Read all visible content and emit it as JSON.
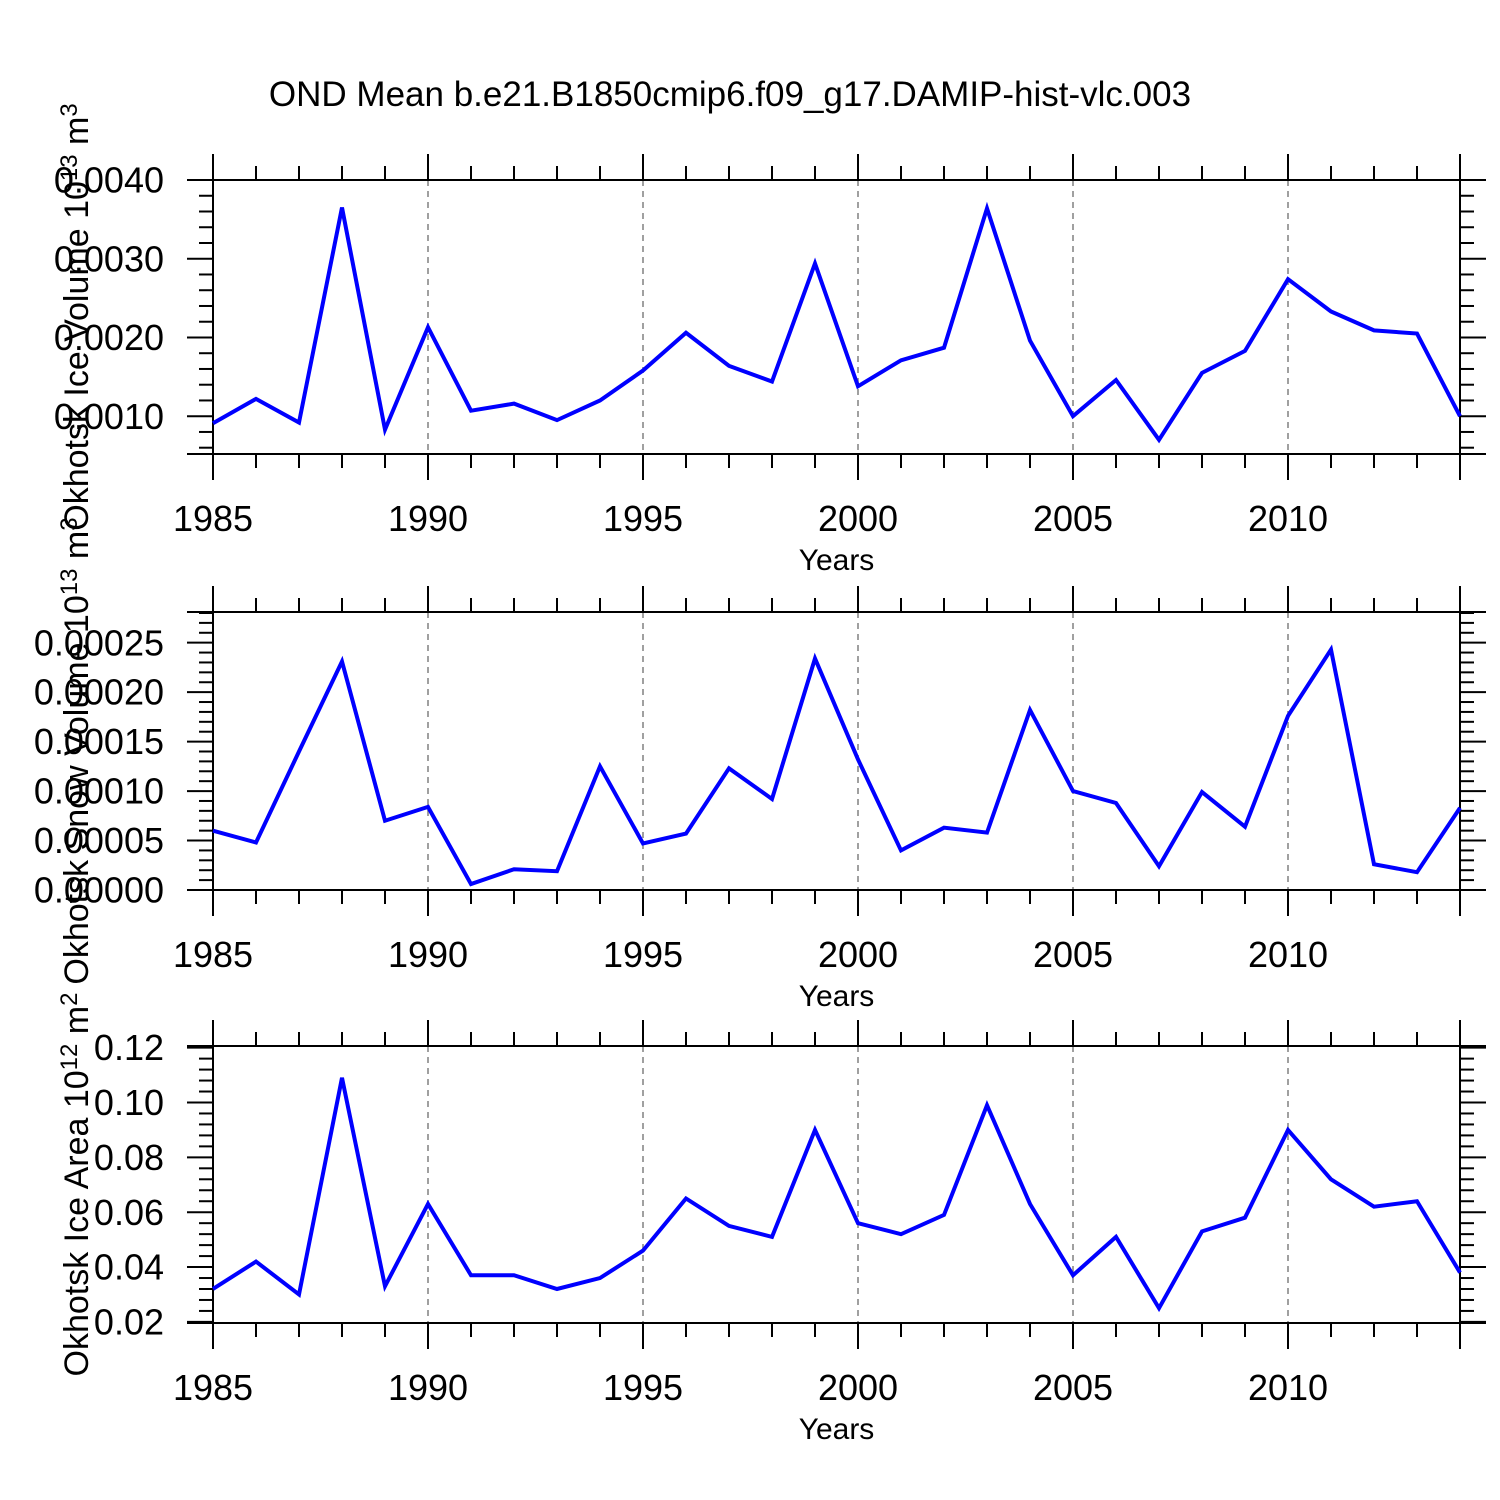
{
  "title": "OND Mean b.e21.B1850cmip6.f09_g17.DAMIP-hist-vlc.003",
  "xlabel": "Years",
  "colors": {
    "line": "#0000ff",
    "grid": "#888888",
    "axis": "#000000",
    "background": "#ffffff"
  },
  "xlim": [
    1985,
    2014
  ],
  "years": [
    1985,
    1986,
    1987,
    1988,
    1989,
    1990,
    1991,
    1992,
    1993,
    1994,
    1995,
    1996,
    1997,
    1998,
    1999,
    2000,
    2001,
    2002,
    2003,
    2004,
    2005,
    2006,
    2007,
    2008,
    2009,
    2010,
    2011,
    2012,
    2013,
    2014
  ],
  "xticks_major": [
    1985,
    1990,
    1995,
    2000,
    2005,
    2010
  ],
  "xtick_labels": [
    "1985",
    "1990",
    "1995",
    "2000",
    "2005",
    "2010"
  ],
  "grid_years": [
    1990,
    1995,
    2000,
    2005,
    2010
  ],
  "chart_data": [
    {
      "type": "line",
      "name": "ice-volume",
      "ylabel_parts": [
        [
          "Okhotsk Ice Volume 10",
          false
        ],
        [
          "13",
          true
        ],
        [
          " m",
          false
        ],
        [
          "3",
          true
        ]
      ],
      "ylabel_plain": "Okhotsk Ice Volume 10^13 m^3",
      "ylim": [
        0.00052,
        0.004
      ],
      "ytick_vals": [
        0.001,
        0.002,
        0.003,
        0.004
      ],
      "ytick_labels": [
        "0.0010",
        "0.0020",
        "0.0030",
        "0.0040"
      ],
      "yminor_step": 0.0002,
      "grid": "vertical-dashed",
      "legend": "none",
      "values": [
        0.00091,
        0.00122,
        0.00092,
        0.00365,
        0.00083,
        0.00213,
        0.00107,
        0.00116,
        0.00095,
        0.0012,
        0.00158,
        0.00206,
        0.00164,
        0.00144,
        0.00294,
        0.00138,
        0.00171,
        0.00187,
        0.00364,
        0.00196,
        0.001,
        0.00146,
        0.0007,
        0.00155,
        0.00183,
        0.00274,
        0.00233,
        0.00209,
        0.00205,
        0.001
      ]
    },
    {
      "type": "line",
      "name": "snow-volume",
      "ylabel_parts": [
        [
          "Okhotsk Snow Volume 10",
          false
        ],
        [
          "13",
          true
        ],
        [
          " m",
          false
        ],
        [
          "3",
          true
        ]
      ],
      "ylabel_plain": "Okhotsk Snow Volume 10^13 m^3",
      "ylim": [
        0.0,
        0.000281
      ],
      "ytick_vals": [
        0.0,
        5e-05,
        0.0001,
        0.00015,
        0.0002,
        0.00025
      ],
      "ytick_labels": [
        "0.00000",
        "0.00005",
        "0.00010",
        "0.00015",
        "0.00020",
        "0.00025"
      ],
      "yminor_step": 1e-05,
      "grid": "vertical-dashed",
      "legend": "none",
      "values": [
        6e-05,
        4.8e-05,
        0.00014,
        0.000231,
        7e-05,
        8.4e-05,
        6e-06,
        2.1e-05,
        1.9e-05,
        0.000125,
        4.7e-05,
        5.7e-05,
        0.000123,
        9.2e-05,
        0.000234,
        0.000132,
        4e-05,
        6.3e-05,
        5.8e-05,
        0.000182,
        0.0001,
        8.8e-05,
        2.4e-05,
        9.9e-05,
        6.4e-05,
        0.000176,
        0.000243,
        2.6e-05,
        1.8e-05,
        8.3e-05
      ]
    },
    {
      "type": "line",
      "name": "ice-area",
      "ylabel_parts": [
        [
          "Okhotsk Ice Area 10",
          false
        ],
        [
          "12",
          true
        ],
        [
          " m",
          false
        ],
        [
          "2",
          true
        ]
      ],
      "ylabel_plain": "Okhotsk Ice Area 10^12 m^2",
      "ylim": [
        0.0196,
        0.1206
      ],
      "ytick_vals": [
        0.02,
        0.04,
        0.06,
        0.08,
        0.1,
        0.12
      ],
      "ytick_labels": [
        "0.02",
        "0.04",
        "0.06",
        "0.08",
        "0.10",
        "0.12"
      ],
      "yminor_step": 0.004,
      "grid": "vertical-dashed",
      "legend": "none",
      "values": [
        0.032,
        0.042,
        0.03,
        0.109,
        0.033,
        0.063,
        0.037,
        0.037,
        0.032,
        0.036,
        0.046,
        0.065,
        0.055,
        0.051,
        0.09,
        0.056,
        0.052,
        0.059,
        0.099,
        0.063,
        0.037,
        0.051,
        0.025,
        0.053,
        0.058,
        0.09,
        0.072,
        0.062,
        0.064,
        0.038
      ]
    }
  ]
}
